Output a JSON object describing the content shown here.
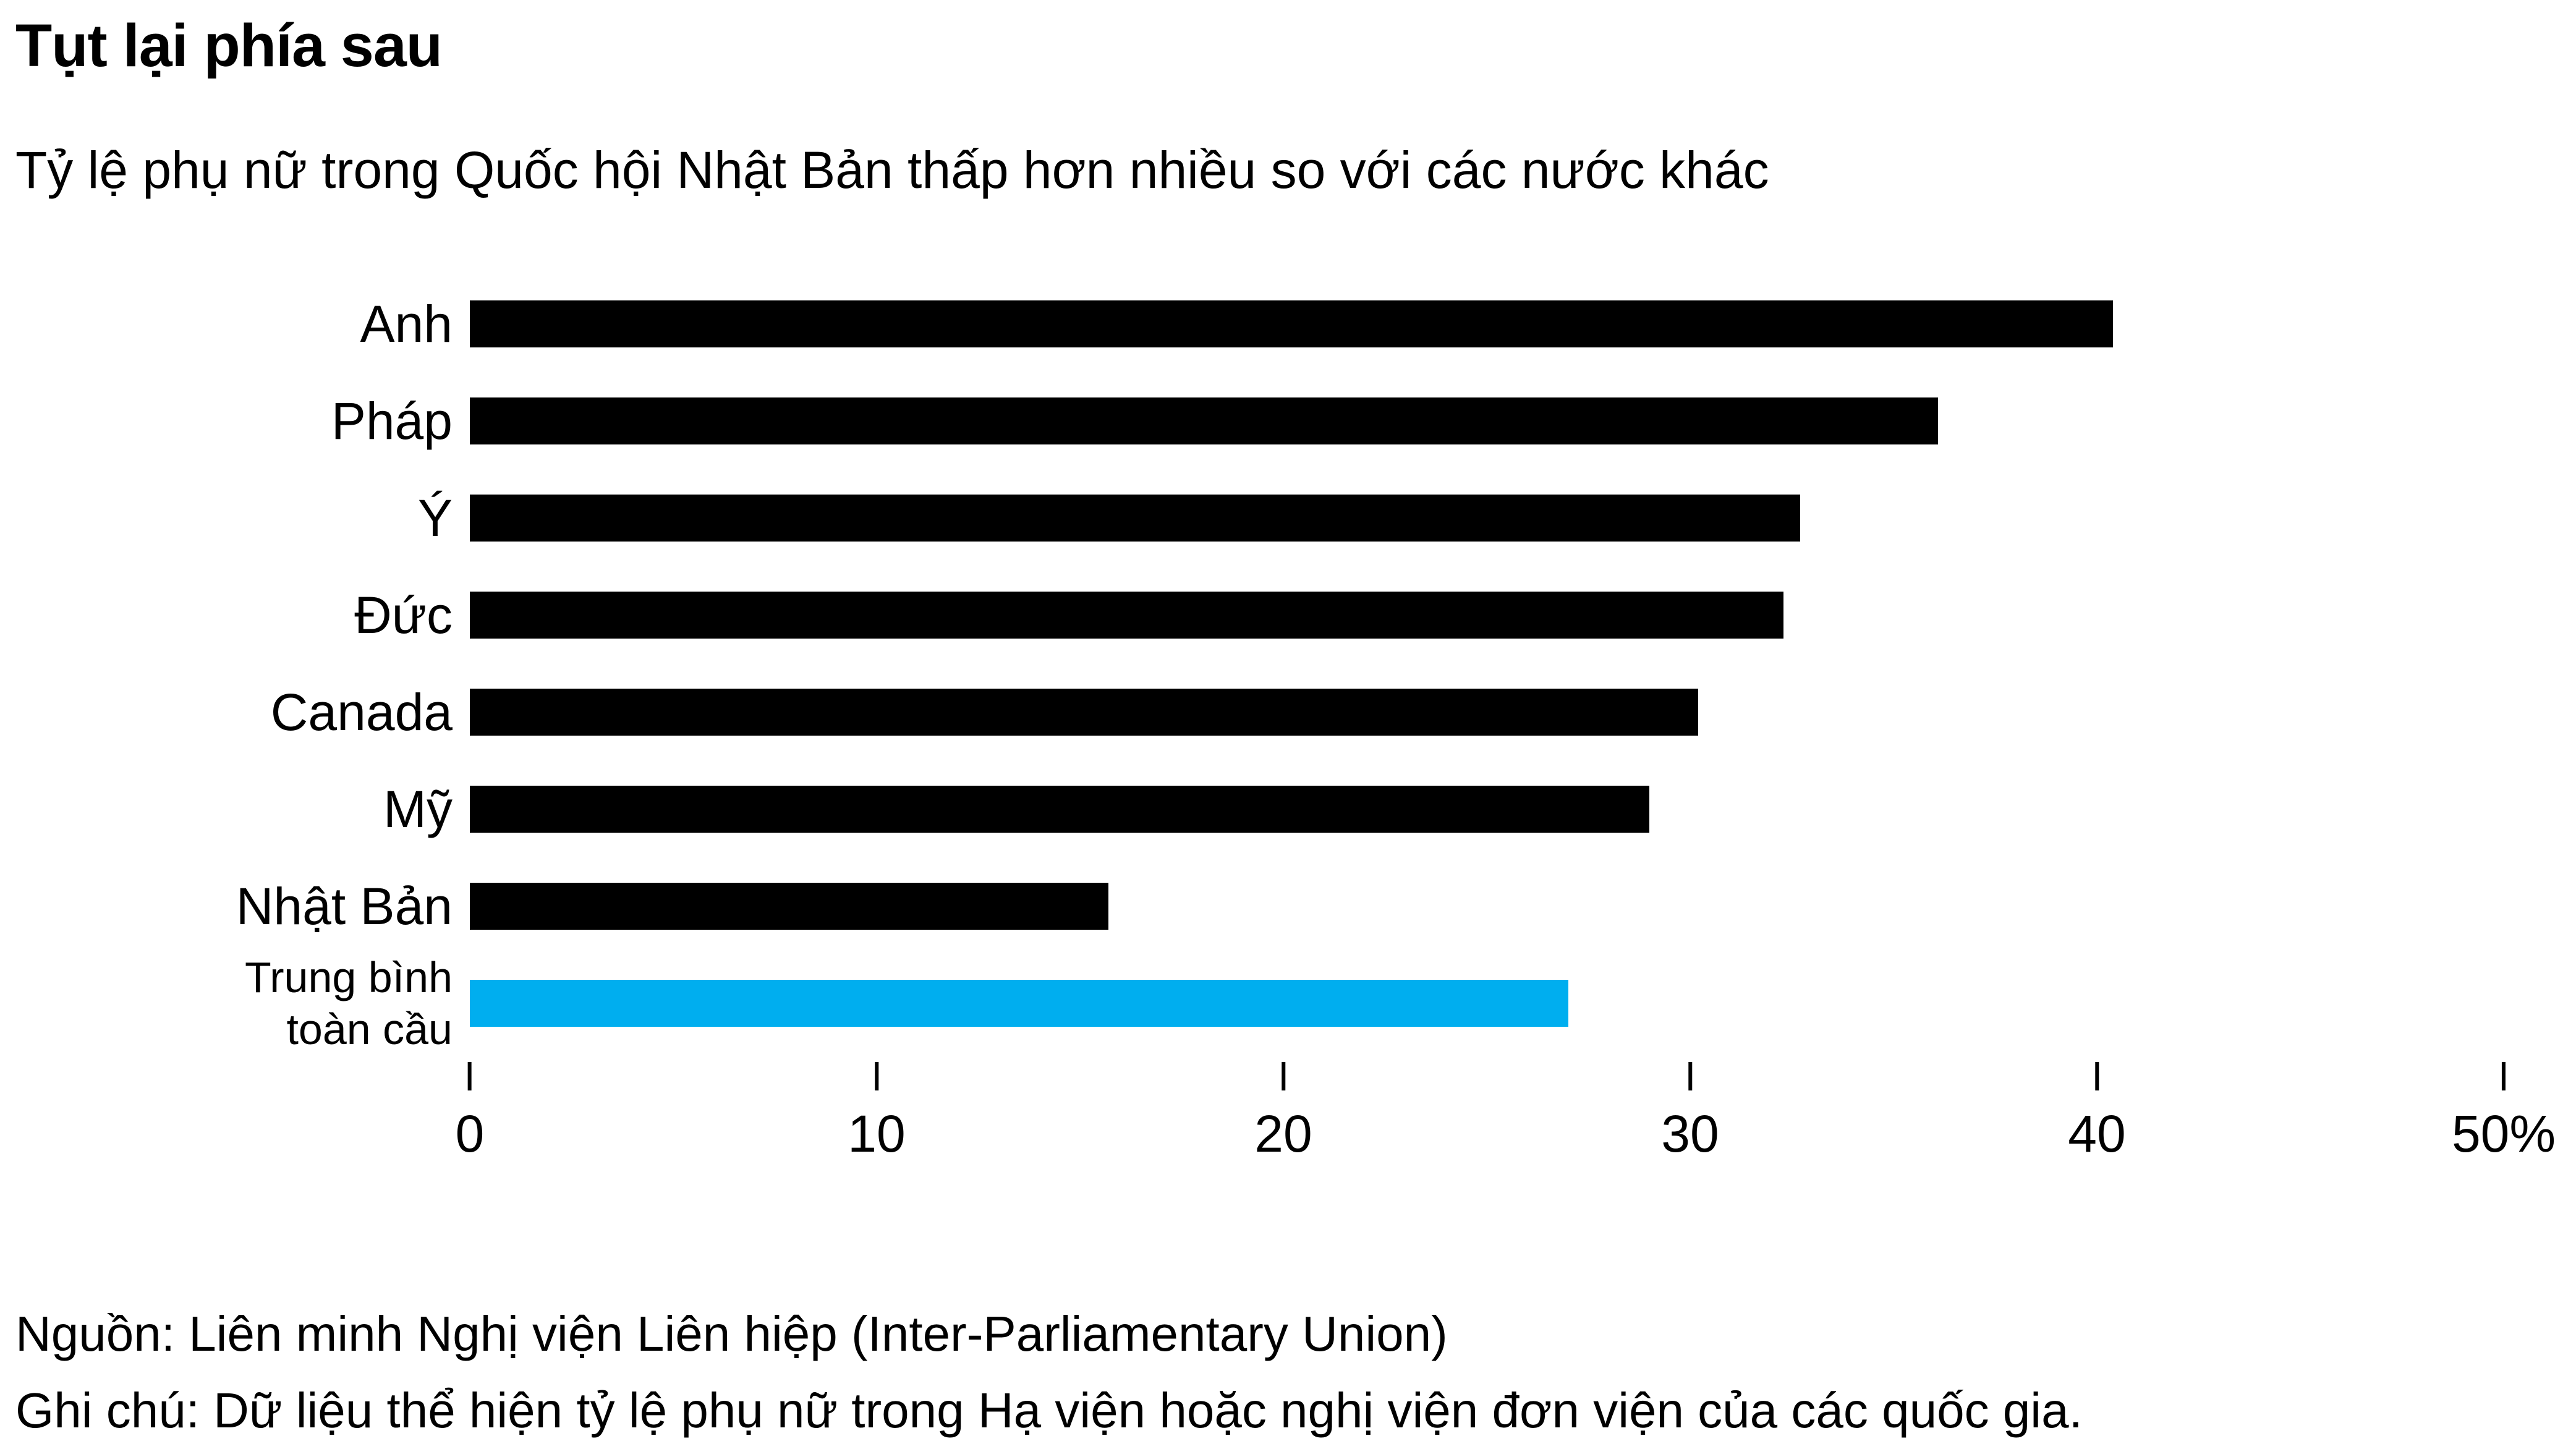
{
  "header": {
    "title": "Tụt lại phía sau",
    "subtitle": "Tỷ lệ phụ nữ trong Quốc hội Nhật Bản thấp hơn nhiều so với các nước khác"
  },
  "chart_data": {
    "type": "bar",
    "orientation": "horizontal",
    "title": "Tụt lại phía sau",
    "subtitle": "Tỷ lệ phụ nữ trong Quốc hội Nhật Bản thấp hơn nhiều so với các nước khác",
    "categories": [
      "Anh",
      "Pháp",
      "Ý",
      "Đức",
      "Canada",
      "Mỹ",
      "Nhật Bản",
      "Trung bình\ntoàn cầu"
    ],
    "values": [
      40.4,
      36.1,
      32.7,
      32.3,
      30.2,
      29.0,
      15.7,
      27.0
    ],
    "unit": "%",
    "xlim": [
      0,
      50
    ],
    "x_ticks": [
      {
        "value": 0,
        "label": "0"
      },
      {
        "value": 10,
        "label": "10"
      },
      {
        "value": 20,
        "label": "20"
      },
      {
        "value": 30,
        "label": "30"
      },
      {
        "value": 40,
        "label": "40"
      },
      {
        "value": 50,
        "label": "50%"
      }
    ],
    "highlight_index": 7,
    "grid": false,
    "legend": "none"
  },
  "colors": {
    "bar": "#000000",
    "highlight": "#00aeef",
    "text": "#000000",
    "background": "#ffffff"
  },
  "footer": {
    "source": "Nguồn: Liên minh Nghị viện Liên hiệp (Inter-Parliamentary Union)",
    "note": "Ghi chú: Dữ liệu thể hiện tỷ lệ phụ nữ trong Hạ viện hoặc nghị viện đơn viện của các quốc gia."
  }
}
